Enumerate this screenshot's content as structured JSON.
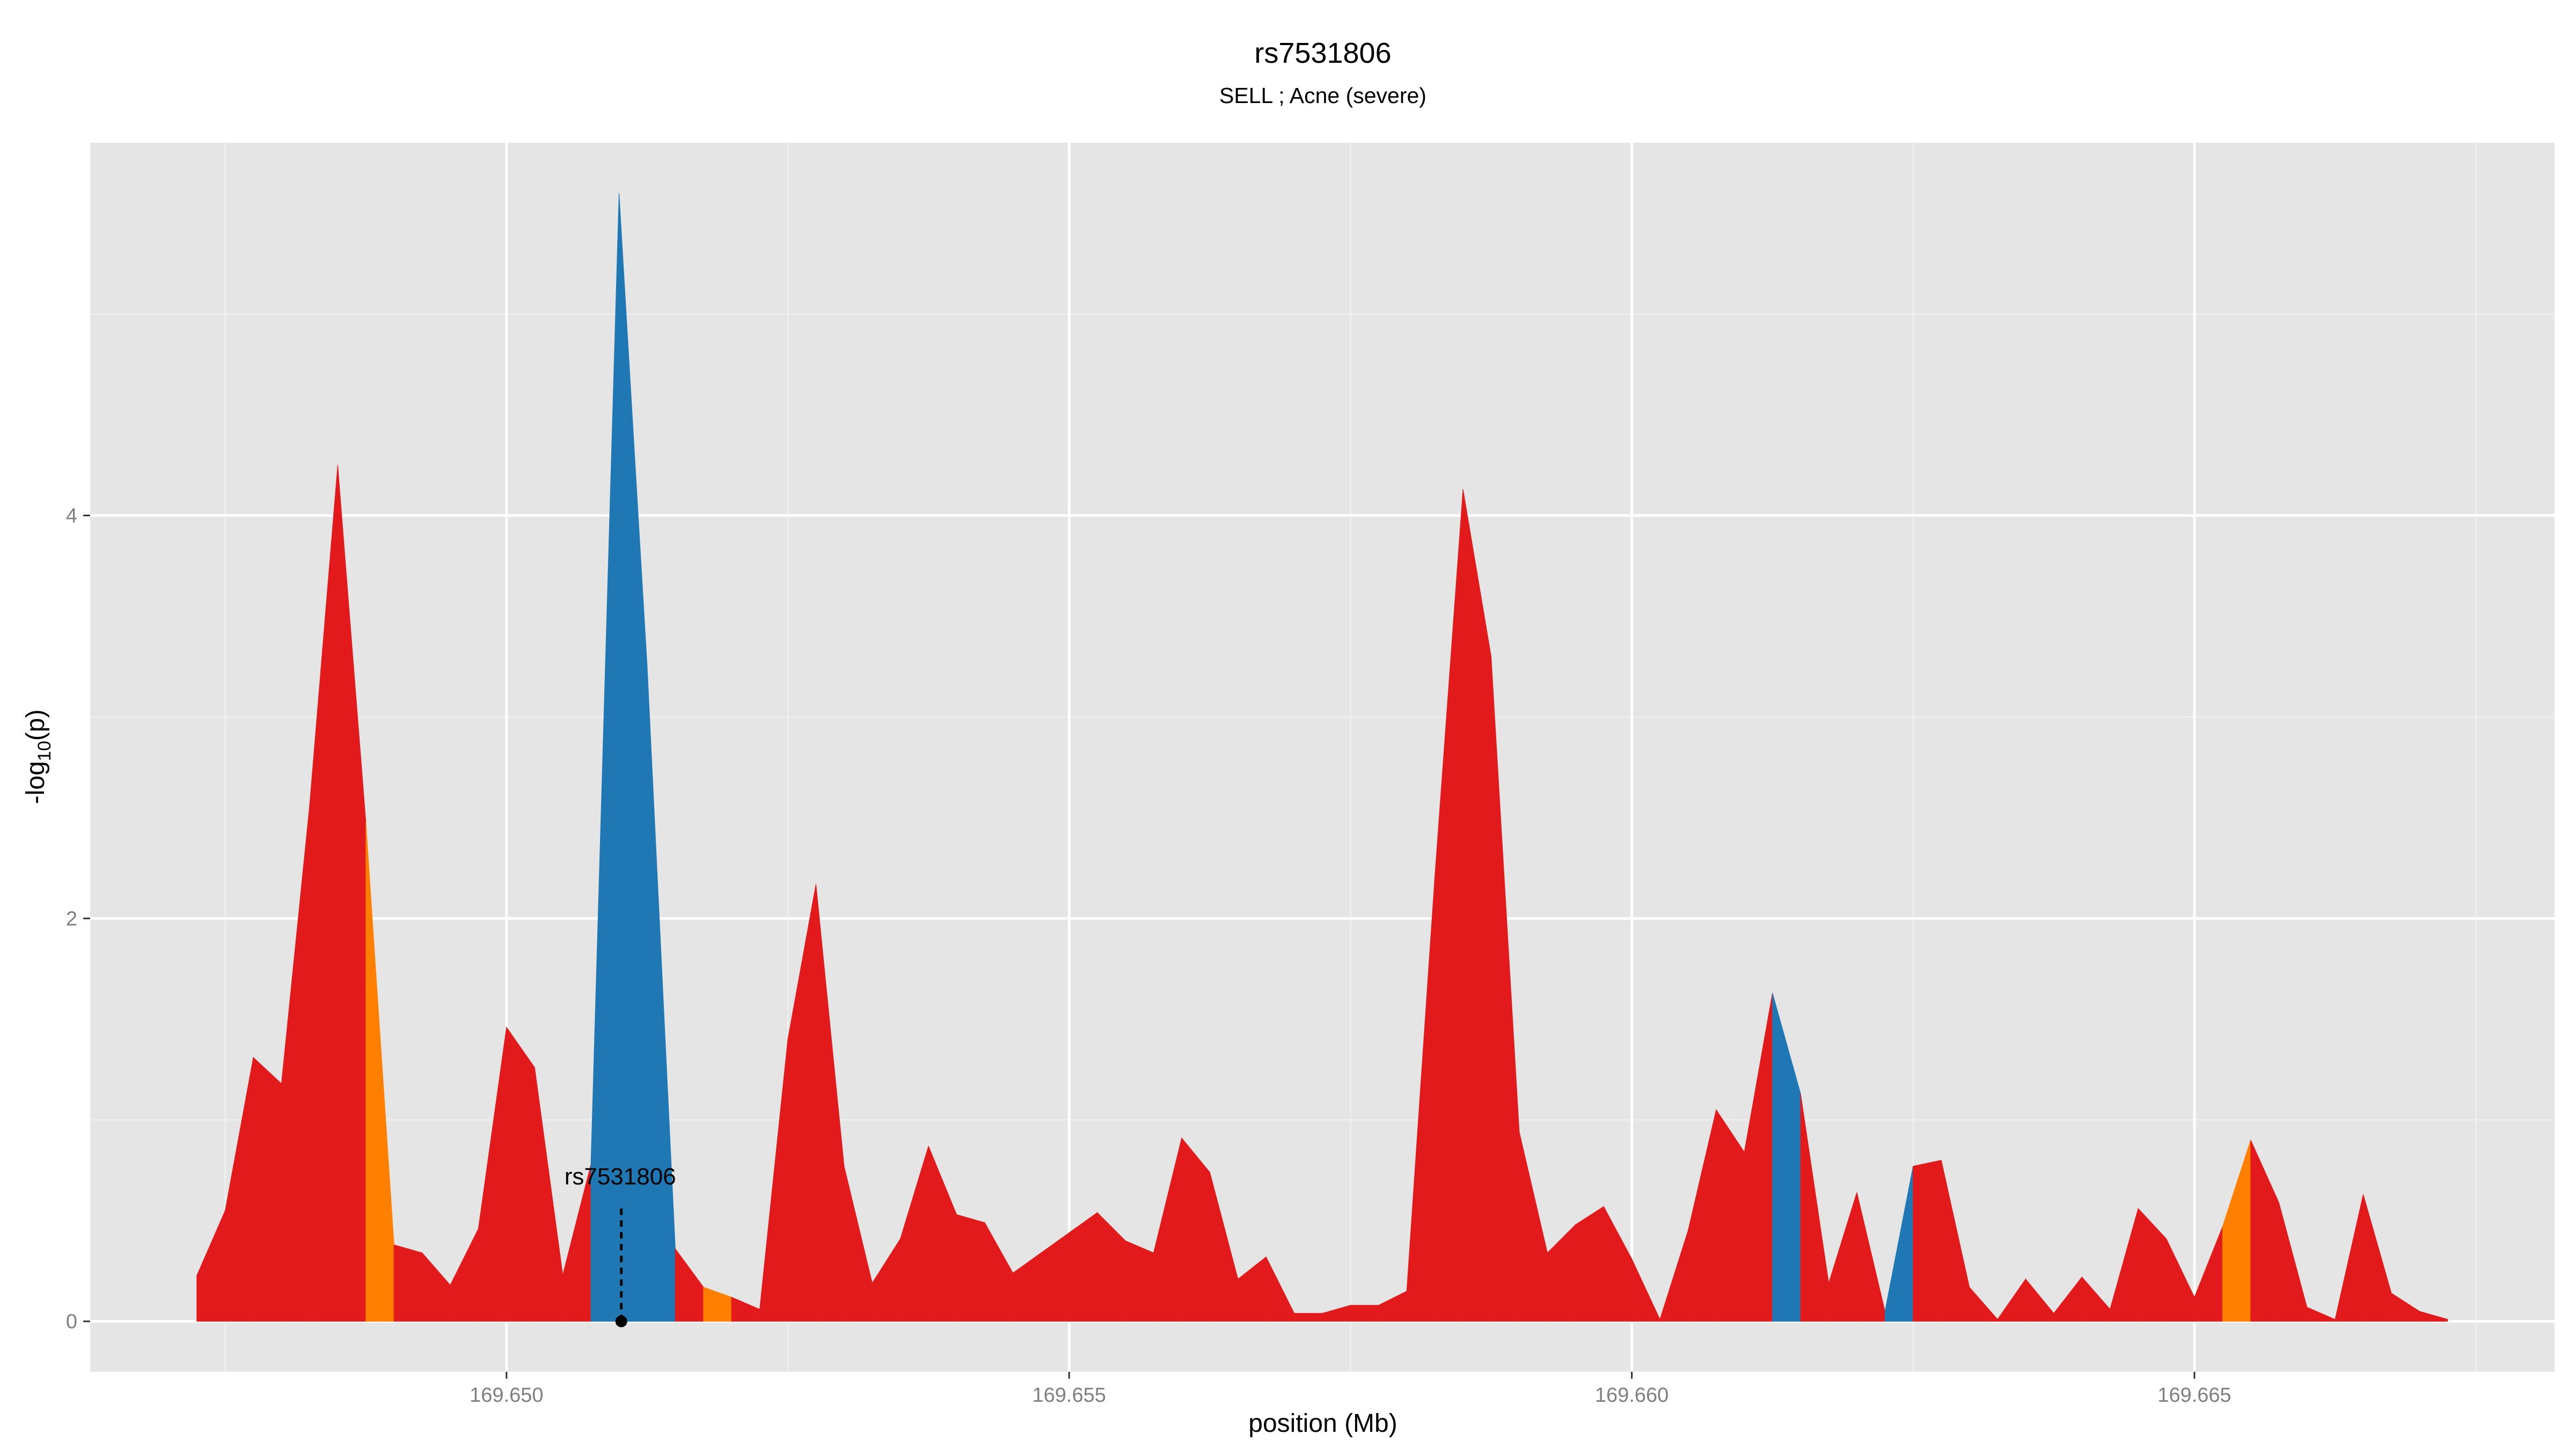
{
  "chart_data": {
    "type": "area",
    "title": "rs7531806",
    "subtitle": "SELL ; Acne (severe)",
    "xlabel": "position (Mb)",
    "ylabel_main": "-log",
    "ylabel_sub": "10",
    "ylabel_tail": "(p)",
    "xlim": [
      169.6463,
      169.6682
    ],
    "ylim": [
      -0.25,
      5.85
    ],
    "x_ticks": [
      169.65,
      169.655,
      169.66,
      169.665
    ],
    "x_tick_labels": [
      "169.650",
      "169.655",
      "169.660",
      "169.665"
    ],
    "y_ticks": [
      0,
      2,
      4
    ],
    "y_tick_labels": [
      "0",
      "2",
      "4"
    ],
    "grid": true,
    "colors": {
      "panel": "#E5E5E5",
      "grid_major": "#FFFFFF",
      "grid_minor": "#F2F2F2",
      "red": "#E31A1C",
      "orange": "#FF7F00",
      "blue": "#1F78B4",
      "text": "#000000",
      "tick_text": "#7F7F7F"
    },
    "x": [
      169.64725,
      169.6475,
      169.64775,
      169.648,
      169.64825,
      169.6485,
      169.64875,
      169.649,
      169.64925,
      169.6495,
      169.64975,
      169.65,
      169.65025,
      169.6505,
      169.65075,
      169.651,
      169.65125,
      169.6515,
      169.65175,
      169.652,
      169.65225,
      169.6525,
      169.65275,
      169.653,
      169.65325,
      169.6535,
      169.65375,
      169.654,
      169.65425,
      169.6545,
      169.65475,
      169.655,
      169.65525,
      169.6555,
      169.65575,
      169.656,
      169.65625,
      169.6565,
      169.65675,
      169.657,
      169.65725,
      169.6575,
      169.65775,
      169.658,
      169.65825,
      169.6585,
      169.65875,
      169.659,
      169.65925,
      169.6595,
      169.65975,
      169.66,
      169.66025,
      169.6605,
      169.66075,
      169.661,
      169.66125,
      169.6615,
      169.66175,
      169.662,
      169.66225,
      169.6625,
      169.66275,
      169.663,
      169.66325,
      169.6635,
      169.66375,
      169.664,
      169.66425,
      169.6645,
      169.66475,
      169.665,
      169.66525,
      169.6655,
      169.66575,
      169.666,
      169.66625,
      169.6665,
      169.66675,
      169.667,
      169.66725
    ],
    "y": [
      0.23,
      0.55,
      1.31,
      1.18,
      2.56,
      4.25,
      2.48,
      0.38,
      0.34,
      0.18,
      0.46,
      1.46,
      1.26,
      0.23,
      0.78,
      5.6,
      3.25,
      0.36,
      0.17,
      0.12,
      0.06,
      1.4,
      2.17,
      0.77,
      0.19,
      0.41,
      0.87,
      0.53,
      0.49,
      0.24,
      0.34,
      0.44,
      0.54,
      0.4,
      0.34,
      0.91,
      0.74,
      0.21,
      0.32,
      0.04,
      0.04,
      0.08,
      0.08,
      0.15,
      2.21,
      4.13,
      3.3,
      0.94,
      0.34,
      0.48,
      0.57,
      0.31,
      0.01,
      0.45,
      1.05,
      0.84,
      1.63,
      1.13,
      0.19,
      0.64,
      0.05,
      0.77,
      0.8,
      0.17,
      0.01,
      0.21,
      0.04,
      0.22,
      0.06,
      0.56,
      0.41,
      0.12,
      0.47,
      0.9,
      0.59,
      0.07,
      0.01,
      0.63,
      0.14,
      0.05,
      0.01
    ],
    "band_colors": [
      "red",
      "red",
      "red",
      "red",
      "red",
      "red",
      "orange",
      "red",
      "red",
      "red",
      "red",
      "red",
      "red",
      "red",
      "blue",
      "blue",
      "blue",
      "red",
      "orange",
      "red",
      "red",
      "red",
      "red",
      "red",
      "red",
      "red",
      "red",
      "red",
      "red",
      "red",
      "red",
      "red",
      "red",
      "red",
      "red",
      "red",
      "red",
      "red",
      "red",
      "red",
      "red",
      "red",
      "red",
      "red",
      "red",
      "red",
      "red",
      "red",
      "red",
      "red",
      "red",
      "red",
      "red",
      "red",
      "red",
      "red",
      "blue",
      "red",
      "red",
      "red",
      "blue",
      "red",
      "red",
      "red",
      "red",
      "red",
      "red",
      "red",
      "red",
      "red",
      "red",
      "red",
      "orange",
      "red",
      "red",
      "red",
      "red",
      "red",
      "red",
      "red"
    ],
    "annotation": {
      "label": "rs7531806",
      "x": 169.65102,
      "y_text": 0.68,
      "y_line_top": 0.56,
      "y_point": 0.0
    }
  }
}
